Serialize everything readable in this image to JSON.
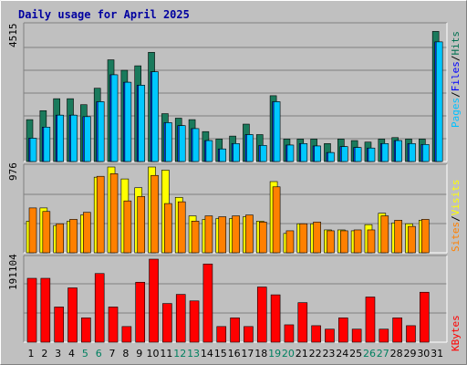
{
  "chart_data": [
    {
      "type": "bar",
      "title": "Daily usage for April 2025",
      "max_label": "4515",
      "ymax": 4515,
      "legend": [
        "Pages",
        "Files",
        "Hits"
      ],
      "legend_colors": {
        "Pages": "#00c0ff",
        "Files": "#0000ff",
        "Hits": "#007050"
      },
      "categories": [
        "1",
        "2",
        "3",
        "4",
        "5",
        "6",
        "7",
        "8",
        "9",
        "10",
        "11",
        "12",
        "13",
        "14",
        "15",
        "16",
        "17",
        "18",
        "19",
        "20",
        "21",
        "22",
        "23",
        "24",
        "25",
        "26",
        "27",
        "28",
        "29",
        "30",
        "31"
      ],
      "series": [
        {
          "name": "Hits",
          "color": "#1a7a5c",
          "values": [
            1400,
            1700,
            2100,
            2100,
            1900,
            2450,
            3400,
            3050,
            3200,
            3650,
            1600,
            1450,
            1400,
            1000,
            750,
            850,
            1250,
            900,
            2200,
            750,
            750,
            750,
            600,
            750,
            700,
            650,
            750,
            800,
            750,
            750,
            4350
          ]
        },
        {
          "name": "Files",
          "color": "#0044ff",
          "values": [
            780,
            1150,
            1550,
            1550,
            1500,
            2000,
            2900,
            2650,
            2550,
            3000,
            1300,
            1200,
            1100,
            700,
            420,
            600,
            900,
            540,
            2000,
            550,
            600,
            520,
            300,
            500,
            470,
            450,
            600,
            700,
            600,
            570,
            4000
          ]
        },
        {
          "name": "Pages",
          "color": "#00c8ff",
          "values": [
            780,
            1150,
            1550,
            1550,
            1500,
            2000,
            2900,
            2650,
            2550,
            3000,
            1300,
            1200,
            1100,
            700,
            420,
            600,
            900,
            540,
            2000,
            550,
            600,
            520,
            300,
            500,
            470,
            450,
            600,
            700,
            600,
            570,
            4000
          ]
        }
      ]
    },
    {
      "type": "bar",
      "max_label": "976",
      "ymax": 976,
      "legend": [
        "Sites",
        "Visits"
      ],
      "legend_colors": {
        "Sites": "#ff8000",
        "Visits": "#ffff00"
      },
      "categories": [
        "1",
        "2",
        "3",
        "4",
        "5",
        "6",
        "7",
        "8",
        "9",
        "10",
        "11",
        "12",
        "13",
        "14",
        "15",
        "16",
        "17",
        "18",
        "19",
        "20",
        "21",
        "22",
        "23",
        "24",
        "25",
        "26",
        "27",
        "28",
        "29",
        "30",
        "31"
      ],
      "series": [
        {
          "name": "Visits",
          "color": "#ffff00",
          "values": [
            360,
            510,
            310,
            360,
            430,
            860,
            976,
            840,
            740,
            976,
            940,
            630,
            420,
            380,
            390,
            390,
            410,
            360,
            810,
            220,
            330,
            330,
            260,
            260,
            250,
            320,
            450,
            340,
            330,
            370,
            0
          ]
        },
        {
          "name": "Sites",
          "color": "#ff8000",
          "values": [
            510,
            470,
            330,
            380,
            460,
            870,
            900,
            590,
            640,
            880,
            560,
            580,
            360,
            420,
            410,
            420,
            430,
            350,
            750,
            250,
            330,
            350,
            250,
            250,
            260,
            260,
            420,
            370,
            300,
            380,
            0
          ]
        }
      ]
    },
    {
      "type": "bar",
      "max_label": "191104",
      "ymax": 191104,
      "legend": [
        "KBytes"
      ],
      "legend_colors": {
        "KBytes": "#ff0000"
      },
      "categories": [
        "1",
        "2",
        "3",
        "4",
        "5",
        "6",
        "7",
        "8",
        "9",
        "10",
        "11",
        "12",
        "13",
        "14",
        "15",
        "16",
        "17",
        "18",
        "19",
        "20",
        "21",
        "22",
        "23",
        "24",
        "25",
        "26",
        "27",
        "28",
        "29",
        "30",
        "31"
      ],
      "series": [
        {
          "name": "KBytes",
          "color": "#ff0000",
          "values": [
            147000,
            147000,
            81000,
            125000,
            56000,
            158000,
            81000,
            36000,
            138000,
            191104,
            89000,
            110000,
            95000,
            180000,
            36000,
            56000,
            36000,
            127000,
            109000,
            40000,
            91000,
            38000,
            30000,
            56000,
            30000,
            104000,
            30000,
            56000,
            38000,
            115000,
            0
          ]
        }
      ]
    }
  ],
  "day_label_colors": {
    "weekday": "#000000",
    "weekend": "#008060"
  },
  "weekend_days": [
    5,
    6,
    12,
    13,
    19,
    20,
    26,
    27
  ]
}
